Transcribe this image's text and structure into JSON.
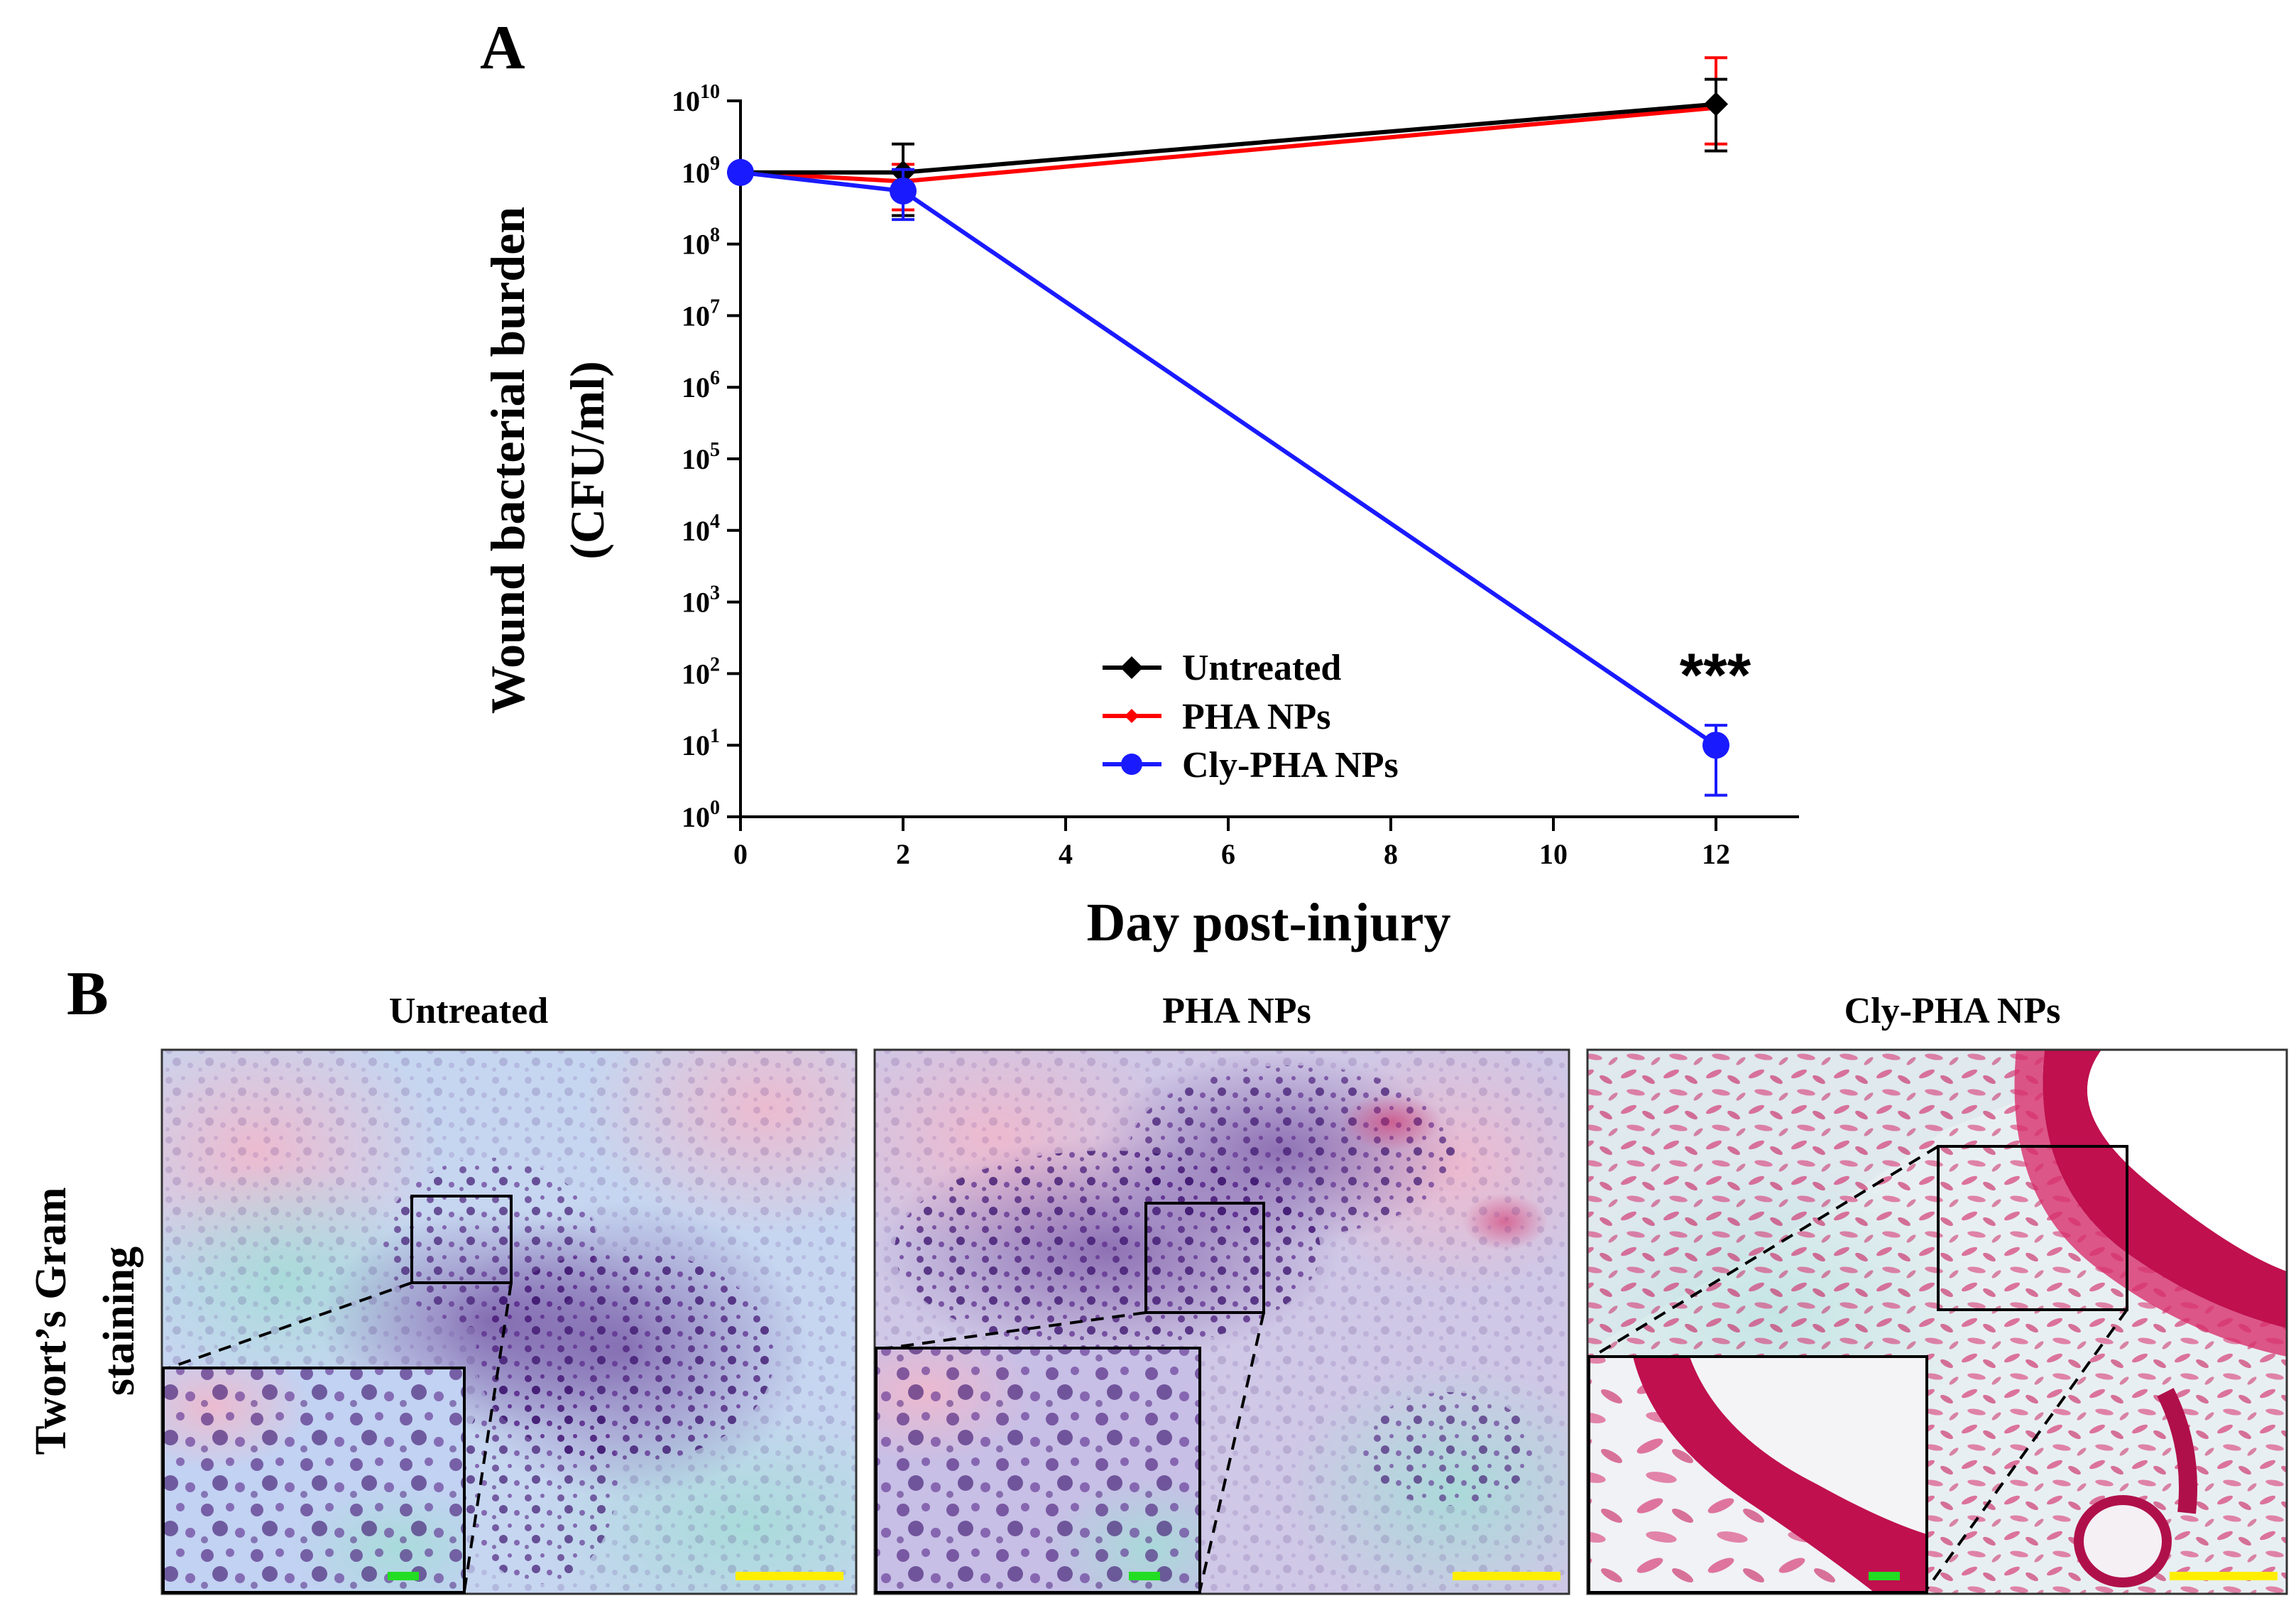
{
  "panel_a": {
    "letter": "A",
    "chart_data": {
      "type": "line",
      "title": "",
      "xlabel": "Day post-injury",
      "ylabel": "Wound bacterial burden",
      "ylabel_line2": "(CFU/ml)",
      "yscale": "log10",
      "xlim": [
        0,
        13
      ],
      "ylim_exponent": [
        0,
        10
      ],
      "x_ticks": [
        "0",
        "2",
        "4",
        "6",
        "8",
        "10",
        "12"
      ],
      "y_tick_base": "10",
      "y_tick_exponents": [
        "0",
        "1",
        "2",
        "3",
        "4",
        "5",
        "6",
        "7",
        "8",
        "9",
        "10"
      ],
      "x": [
        0,
        2,
        12
      ],
      "series": [
        {
          "name": "Untreated",
          "color": "#000000",
          "marker": "diamond",
          "values": [
            1000000000,
            1000000000,
            9000000000
          ],
          "error_low": [
            1000000000,
            250000000,
            2000000000
          ],
          "error_high": [
            1000000000,
            2500000000,
            20000000000
          ]
        },
        {
          "name": "PHA NPs",
          "color": "#ff0000",
          "marker": "diamond-small",
          "values": [
            1000000000,
            750000000,
            8000000000
          ],
          "error_low": [
            1000000000,
            300000000,
            2500000000
          ],
          "error_high": [
            1000000000,
            1300000000,
            40000000000
          ]
        },
        {
          "name": "Cly-PHA NPs",
          "color": "#1a1aff",
          "marker": "circle",
          "values": [
            1000000000,
            550000000,
            10
          ],
          "error_low": [
            1000000000,
            220000000,
            2
          ],
          "error_high": [
            1000000000,
            1100000000,
            19
          ]
        }
      ],
      "annotation": "***",
      "legend_position": "lower-center"
    }
  },
  "panel_b": {
    "letter": "B",
    "row_label_line1": "Twort’s Gram",
    "row_label_line2": "staining",
    "images": [
      {
        "title": "Untreated"
      },
      {
        "title": "PHA NPs"
      },
      {
        "title": "Cly-PHA NPs"
      }
    ],
    "colors": {
      "scale_bar": "#ffee00",
      "inset_scale_bar": "#22dd22"
    }
  }
}
